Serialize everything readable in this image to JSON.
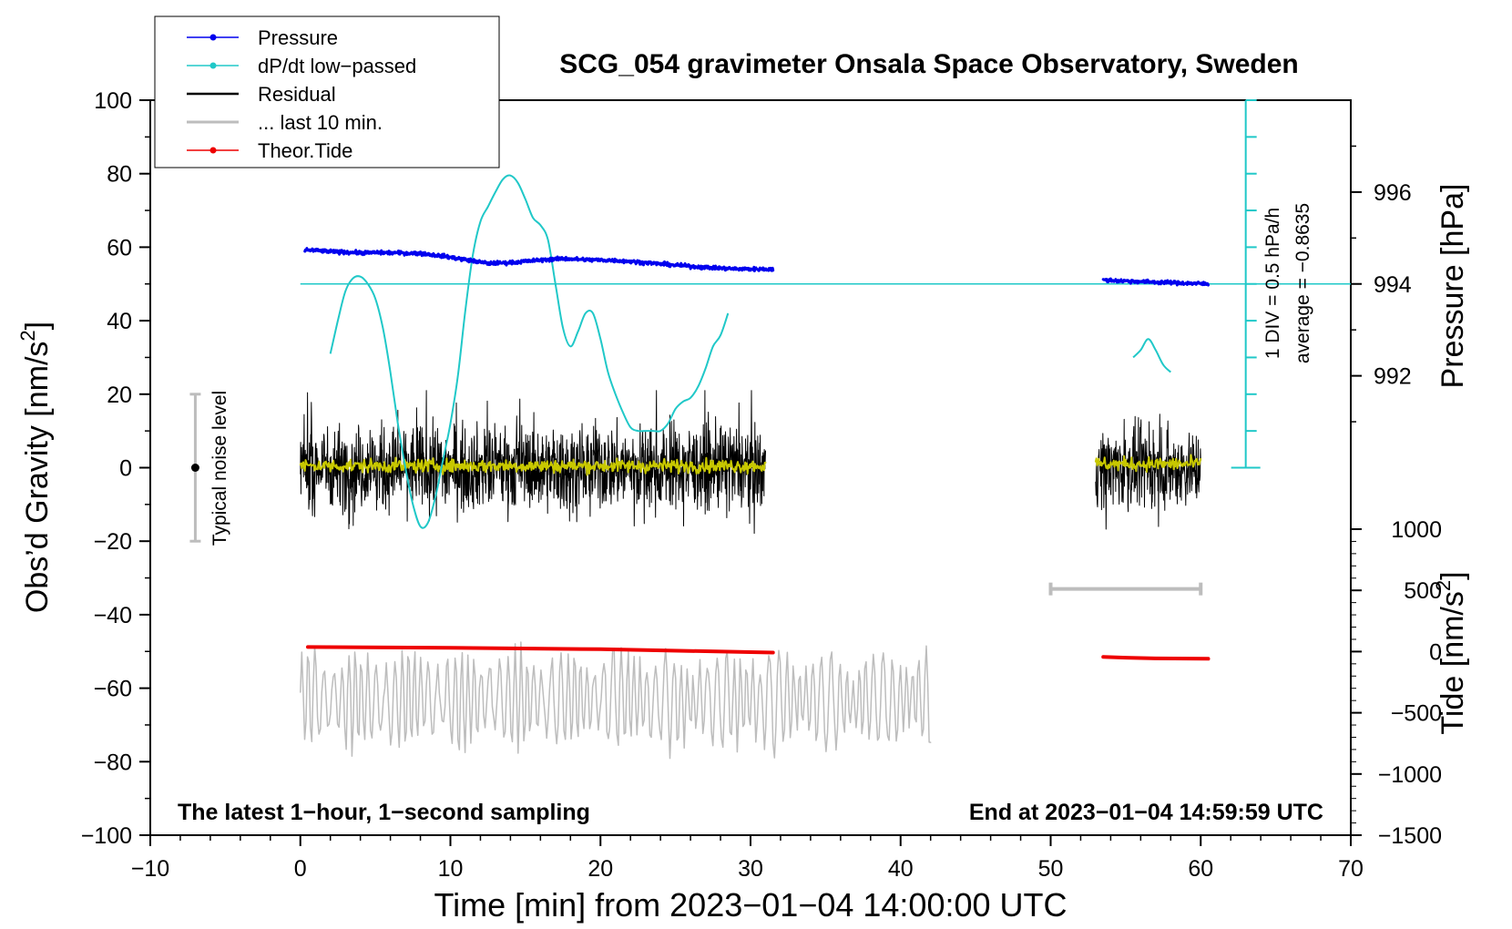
{
  "chart_data": {
    "type": "line",
    "title": "SCG_054 gravimeter Onsala Space Observatory, Sweden",
    "xlabel": "Time [min] from 2023−01−04 14:00:00 UTC",
    "ylabel": "Obs’d Gravity [nm/s2]",
    "ylabel_main": "Obs’d Gravity [nm/s",
    "ylabel_sup": "2",
    "ylabel_end": "]",
    "xlim": [
      -10,
      70
    ],
    "ylim": [
      -100,
      100
    ],
    "x_ticks": [
      -10,
      0,
      10,
      20,
      30,
      40,
      50,
      60,
      70
    ],
    "x_tick_labels": [
      "−10",
      "0",
      "10",
      "20",
      "30",
      "40",
      "50",
      "60",
      "70"
    ],
    "y_ticks": [
      -100,
      -80,
      -60,
      -40,
      -20,
      0,
      20,
      40,
      60,
      80,
      100
    ],
    "y_tick_labels": [
      "−100",
      "−80",
      "−60",
      "−40",
      "−20",
      "0",
      "20",
      "40",
      "60",
      "80",
      "100"
    ],
    "pressure_axis": {
      "label": "Pressure [hPa]",
      "ticks": [
        992,
        994,
        996
      ],
      "tick_labels": [
        "992",
        "994",
        "996"
      ],
      "reference_hpa": 994,
      "reference_gravity": 50,
      "gravity_per_hpa": 12.5
    },
    "tide_axis": {
      "label": "Tide [nm/s2]",
      "label_main": "Tide [nm/s",
      "label_sup": "2",
      "label_end": "]",
      "ticks": [
        -1500,
        -1000,
        -500,
        0,
        500,
        1000
      ],
      "tick_labels": [
        "−1500",
        "−1000",
        "−500",
        "0",
        "500",
        "1000"
      ],
      "range": [
        -1500,
        1000
      ]
    },
    "dpdt_scale": {
      "line1": "1 DIV = 0.5 hPa/h",
      "line2": "average = −0.8635",
      "x_min": 63,
      "y_bottom": 0,
      "y_top": 100,
      "baseline_y": 50,
      "divisions": 10
    },
    "legend": {
      "position": "top-left",
      "entries": [
        {
          "label": "Pressure",
          "color": "#0000ee",
          "marker": true
        },
        {
          "label": "dP/dt low−passed",
          "color": "#20c8c8",
          "marker": true
        },
        {
          "label": "Residual",
          "color": "#000000",
          "marker": false
        },
        {
          "label": "... last 10 min.",
          "color": "#bdbdbd",
          "marker": false
        },
        {
          "label": "Theor.Tide",
          "color": "#ee0000",
          "marker": true
        }
      ]
    },
    "noise_level": {
      "label": "Typical noise level",
      "x": -7,
      "y": 0,
      "low": -20,
      "high": 20
    },
    "last10_bracket": {
      "x_start": 50,
      "x_end": 60,
      "y": -33
    },
    "footer_left": "The latest 1−hour, 1−second sampling",
    "footer_right": "End at 2023−01−04 14:59:59 UTC",
    "series": [
      {
        "name": "Pressure",
        "color": "#0000ee",
        "unit": "hPa",
        "segments": [
          {
            "x": [
              0.3,
              2,
              4,
              6,
              8,
              9.5,
              11,
              12.5,
              14,
              16,
              17.5,
              19,
              21,
              23,
              25,
              27,
              29,
              31.5
            ],
            "y": [
              59.3,
              58.8,
              58.5,
              58.5,
              58.3,
              57.6,
              56.6,
              55.6,
              55.8,
              56.5,
              56.9,
              56.6,
              56.4,
              55.8,
              55.1,
              54.5,
              54.1,
              54.0
            ]
          },
          {
            "x": [
              53.5,
              55,
              57,
              59,
              60.5
            ],
            "y": [
              51.0,
              50.8,
              50.5,
              50.2,
              50.0
            ]
          }
        ]
      },
      {
        "name": "dP/dt low−passed",
        "color": "#20c8c8",
        "unit": "gravity units",
        "segments": [
          {
            "x": [
              2,
              2.5,
              3,
              3.5,
              4,
              4.5,
              5,
              5.5,
              6,
              6.5,
              7,
              7.5,
              8,
              8.5,
              9,
              9.5,
              10,
              10.5,
              11,
              11.5,
              12,
              12.5,
              13,
              13.5,
              14,
              14.5,
              15,
              15.5,
              16,
              16.5,
              17,
              17.5,
              18,
              18.5,
              19,
              19.5,
              20,
              20.5,
              21,
              21.5,
              22,
              22.5,
              23,
              23.5,
              24,
              24.5,
              25,
              25.5,
              26,
              26.5,
              27,
              27.5,
              28,
              28.5
            ],
            "y": [
              31,
              40,
              48,
              51.5,
              52,
              50,
              46,
              38,
              26,
              12,
              0,
              -10,
              -16,
              -15,
              -8,
              2,
              12,
              25,
              43,
              58,
              67,
              71,
              75,
              78.5,
              79.5,
              77.5,
              73,
              68,
              66,
              62,
              50,
              38,
              33,
              37,
              42,
              42,
              35,
              26,
              20,
              15,
              11,
              10,
              10,
              10,
              10,
              12,
              16,
              18,
              19,
              22,
              27,
              33,
              36,
              42
            ]
          },
          {
            "x": [
              55.5,
              56,
              56.5,
              57,
              57.5,
              58
            ],
            "y": [
              30,
              32,
              35,
              32,
              28,
              26
            ]
          }
        ]
      },
      {
        "name": "Residual",
        "color": "#000000",
        "unit": "nm/s2",
        "segments": [
          {
            "x_start": 0,
            "x_end": 31,
            "amplitude": 13
          },
          {
            "x_start": 53,
            "x_end": 60,
            "amplitude": 12
          }
        ]
      },
      {
        "name": "Residual smoothed",
        "color": "#c8c800",
        "unit": "nm/s2",
        "segments": [
          {
            "x_start": 0,
            "x_end": 31,
            "y": 0.5
          },
          {
            "x_start": 53,
            "x_end": 60,
            "y": 1.0
          }
        ]
      },
      {
        "name": "... last 10 min.",
        "color": "#bdbdbd",
        "unit": "nm/s2",
        "segments": [
          {
            "x_start": 0,
            "x_end": 42,
            "center": -63,
            "amplitude": 13
          }
        ]
      },
      {
        "name": "Theor.Tide",
        "color": "#ee0000",
        "unit": "nm/s2",
        "segments": [
          {
            "x": [
              0.5,
              10,
              20,
              31.5
            ],
            "y": [
              -48.8,
              -49.0,
              -49.4,
              -50.3
            ]
          },
          {
            "x": [
              53.5,
              55,
              57,
              60.5
            ],
            "y": [
              -51.5,
              -51.7,
              -51.9,
              -52.0
            ]
          }
        ]
      }
    ]
  }
}
